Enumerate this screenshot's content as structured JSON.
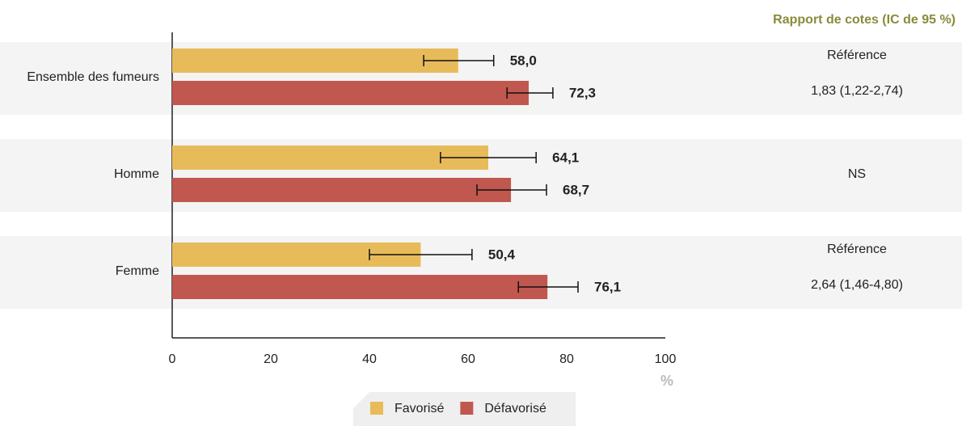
{
  "chart_data": {
    "type": "bar",
    "orientation": "horizontal",
    "categories": [
      "Ensemble des fumeurs",
      "Homme",
      "Femme"
    ],
    "series": [
      {
        "name": "Favorisé",
        "color": "#e8bb5a",
        "values": [
          58.0,
          64.1,
          50.4
        ],
        "value_labels": [
          "58,0",
          "64,1",
          "50,4"
        ],
        "ci": [
          [
            51.0,
            65.2
          ],
          [
            54.4,
            73.8
          ],
          [
            40.0,
            60.8
          ]
        ]
      },
      {
        "name": "Défavorisé",
        "color": "#c0584f",
        "values": [
          72.3,
          68.7,
          76.1
        ],
        "value_labels": [
          "72,3",
          "68,7",
          "76,1"
        ],
        "ci": [
          [
            67.9,
            77.2
          ],
          [
            61.8,
            75.9
          ],
          [
            70.2,
            82.3
          ]
        ]
      }
    ],
    "xlim": [
      0,
      100
    ],
    "xticks": [
      0,
      20,
      40,
      60,
      80,
      100
    ],
    "x_label": "%",
    "side_header": "Rapport de cotes (IC de 95 %)",
    "odds_ratios": [
      [
        "Référence",
        "1,83 (1,22-2,74)"
      ],
      [
        "NS"
      ],
      [
        "Référence",
        "2,64 (1,46-4,80)"
      ]
    ]
  }
}
